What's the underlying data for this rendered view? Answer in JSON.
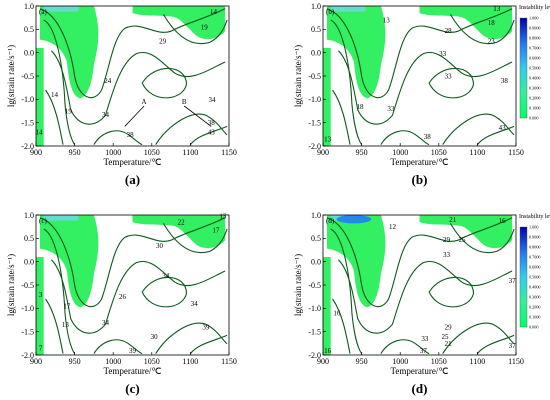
{
  "chart_data": [
    {
      "type": "contour",
      "panel_label": "(a)",
      "corner_label": "(a)",
      "xlabel": "Temperature/℃",
      "ylabel": "lg(strain rate/s⁻¹)",
      "xlim": [
        900,
        1150
      ],
      "ylim": [
        -2.0,
        1.0
      ],
      "x_ticks": [
        "900",
        "950",
        "1000",
        "1050",
        "1100",
        "1150"
      ],
      "y_ticks": [
        "-2.0",
        "-1.5",
        "-1.0",
        "-0.5",
        "0.0",
        "0.5",
        "1.0"
      ],
      "instability_legend": false,
      "contour_labels": [
        {
          "text": "14",
          "x": 1130,
          "y": 0.88
        },
        {
          "text": "19",
          "x": 1118,
          "y": 0.55
        },
        {
          "text": "29",
          "x": 1064,
          "y": 0.25
        },
        {
          "text": "24",
          "x": 993,
          "y": -0.6
        },
        {
          "text": "14",
          "x": 924,
          "y": -0.9
        },
        {
          "text": "19",
          "x": 942,
          "y": -1.25
        },
        {
          "text": "34",
          "x": 990,
          "y": -1.32
        },
        {
          "text": "34",
          "x": 1128,
          "y": -1.0
        },
        {
          "text": "38",
          "x": 1127,
          "y": -1.5
        },
        {
          "text": "43",
          "x": 1127,
          "y": -1.7
        },
        {
          "text": "38",
          "x": 1022,
          "y": -1.75
        },
        {
          "text": "14",
          "x": 904,
          "y": -1.7
        }
      ],
      "annotations": [
        {
          "text": "A",
          "x": 1040,
          "y": -1.1
        },
        {
          "text": "B",
          "x": 1092,
          "y": -1.1
        }
      ]
    },
    {
      "type": "contour",
      "panel_label": "(b)",
      "corner_label": "(b)",
      "xlabel": "Temperature/℃",
      "ylabel": "lg(strain rate/s⁻¹)",
      "xlim": [
        900,
        1150
      ],
      "ylim": [
        -2.0,
        1.0
      ],
      "x_ticks": [
        "900",
        "950",
        "1000",
        "1050",
        "1100",
        "1150"
      ],
      "y_ticks": [
        "-2.0",
        "-1.5",
        "-1.0",
        "-0.5",
        "0.0",
        "0.5",
        "1.0"
      ],
      "instability_legend": true,
      "legend_title": "Instability levels",
      "legend_ticks": [
        "1.000",
        "0.9000",
        "0.8000",
        "0.7000",
        "0.6000",
        "0.5000",
        "0.4000",
        "0.3000",
        "0.2000",
        "0.1000",
        "0.000"
      ],
      "contour_labels": [
        {
          "text": "13",
          "x": 1125,
          "y": 0.95
        },
        {
          "text": "13",
          "x": 982,
          "y": 0.7
        },
        {
          "text": "18",
          "x": 1118,
          "y": 0.65
        },
        {
          "text": "28",
          "x": 1062,
          "y": 0.47
        },
        {
          "text": "23",
          "x": 1118,
          "y": 0.25
        },
        {
          "text": "33",
          "x": 1055,
          "y": -0.02
        },
        {
          "text": "33",
          "x": 1062,
          "y": -0.5
        },
        {
          "text": "38",
          "x": 1135,
          "y": -0.6
        },
        {
          "text": "43",
          "x": 1132,
          "y": -1.6
        },
        {
          "text": "18",
          "x": 948,
          "y": -1.15
        },
        {
          "text": "33",
          "x": 988,
          "y": -1.2
        },
        {
          "text": "38",
          "x": 1035,
          "y": -1.8
        },
        {
          "text": "13",
          "x": 906,
          "y": -1.85
        }
      ],
      "annotations": []
    },
    {
      "type": "contour",
      "panel_label": "(c)",
      "corner_label": "(c)",
      "xlabel": "Temperature/℃",
      "ylabel": "lg(strain rate/s⁻¹)",
      "xlim": [
        900,
        1150
      ],
      "ylim": [
        -2.0,
        1.0
      ],
      "x_ticks": [
        "900",
        "950",
        "1000",
        "1050",
        "1100",
        "1150"
      ],
      "y_ticks": [
        "-2.0",
        "-1.5",
        "-1.0",
        "-0.5",
        "0.0",
        "0.5",
        "1.0"
      ],
      "instability_legend": false,
      "contour_labels": [
        {
          "text": "13",
          "x": 1142,
          "y": 0.98
        },
        {
          "text": "22",
          "x": 1088,
          "y": 0.85
        },
        {
          "text": "17",
          "x": 1133,
          "y": 0.68
        },
        {
          "text": "30",
          "x": 1060,
          "y": 0.35
        },
        {
          "text": "34",
          "x": 1068,
          "y": -0.3
        },
        {
          "text": "26",
          "x": 1012,
          "y": -0.75
        },
        {
          "text": "34",
          "x": 1105,
          "y": -0.9
        },
        {
          "text": "3",
          "x": 906,
          "y": -0.7
        },
        {
          "text": "17",
          "x": 940,
          "y": -0.95
        },
        {
          "text": "13",
          "x": 938,
          "y": -1.35
        },
        {
          "text": "34",
          "x": 990,
          "y": -1.3
        },
        {
          "text": "39",
          "x": 1120,
          "y": -1.4
        },
        {
          "text": "30",
          "x": 1053,
          "y": -1.6
        },
        {
          "text": "39",
          "x": 1025,
          "y": -1.9
        },
        {
          "text": "7",
          "x": 906,
          "y": -1.85
        }
      ],
      "annotations": []
    },
    {
      "type": "contour",
      "panel_label": "(d)",
      "corner_label": "(d)",
      "xlabel": "Temperature/℃",
      "ylabel": "lg(strain rate/s⁻¹)",
      "xlim": [
        900,
        1150
      ],
      "ylim": [
        -2.0,
        1.0
      ],
      "x_ticks": [
        "900",
        "950",
        "1000",
        "1050",
        "1100",
        "1150"
      ],
      "y_ticks": [
        "-2.0",
        "-1.5",
        "-1.0",
        "-0.5",
        "0.0",
        "0.5",
        "1.0"
      ],
      "instability_legend": true,
      "legend_title": "Instability levels",
      "legend_ticks": [
        "1.000",
        "0.9000",
        "0.8000",
        "0.7000",
        "0.6000",
        "0.5000",
        "0.4000",
        "0.3000",
        "0.2000",
        "0.1000",
        "0.000"
      ],
      "contour_labels": [
        {
          "text": "21",
          "x": 1068,
          "y": 0.9
        },
        {
          "text": "16",
          "x": 1132,
          "y": 0.88
        },
        {
          "text": "12",
          "x": 990,
          "y": 0.75
        },
        {
          "text": "29",
          "x": 1060,
          "y": 0.47
        },
        {
          "text": "25",
          "x": 1080,
          "y": 0.47
        },
        {
          "text": "33",
          "x": 1060,
          "y": 0.15
        },
        {
          "text": "37",
          "x": 1145,
          "y": -0.4
        },
        {
          "text": "16",
          "x": 918,
          "y": -1.1
        },
        {
          "text": "29",
          "x": 1062,
          "y": -1.4
        },
        {
          "text": "25",
          "x": 1058,
          "y": -1.6
        },
        {
          "text": "21",
          "x": 1062,
          "y": -1.75
        },
        {
          "text": "33",
          "x": 1032,
          "y": -1.65
        },
        {
          "text": "37",
          "x": 1030,
          "y": -1.9
        },
        {
          "text": "16",
          "x": 906,
          "y": -1.9
        },
        {
          "text": "37",
          "x": 1145,
          "y": -1.8
        }
      ],
      "annotations": []
    }
  ]
}
